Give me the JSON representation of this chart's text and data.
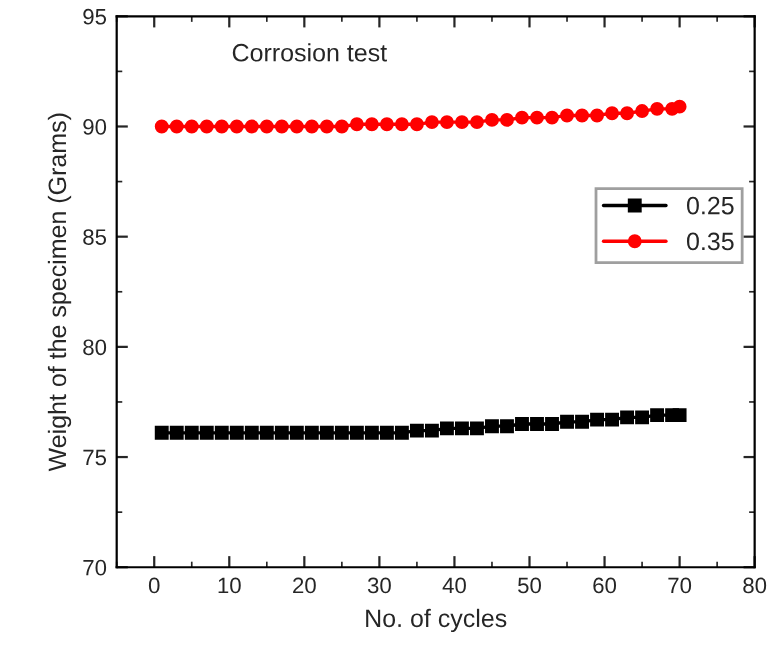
{
  "chart_data": {
    "type": "line",
    "xlabel": "No. of cycles",
    "ylabel": "Weight of the specimen (Grams)",
    "annotations": [
      "Corrosion test"
    ],
    "x": [
      1,
      3,
      5,
      7,
      9,
      11,
      13,
      15,
      17,
      19,
      21,
      23,
      25,
      27,
      29,
      31,
      33,
      35,
      37,
      39,
      41,
      43,
      45,
      47,
      49,
      51,
      53,
      55,
      57,
      59,
      61,
      63,
      65,
      67,
      69,
      70
    ],
    "series": [
      {
        "name": "0.25",
        "color": "#000000",
        "marker": "square",
        "values": [
          76.1,
          76.1,
          76.1,
          76.1,
          76.1,
          76.1,
          76.1,
          76.1,
          76.1,
          76.1,
          76.1,
          76.1,
          76.1,
          76.1,
          76.1,
          76.1,
          76.1,
          76.2,
          76.2,
          76.3,
          76.3,
          76.3,
          76.4,
          76.4,
          76.5,
          76.5,
          76.5,
          76.6,
          76.6,
          76.7,
          76.7,
          76.8,
          76.8,
          76.9,
          76.9,
          76.9
        ]
      },
      {
        "name": "0.35",
        "color": "#ff0000",
        "marker": "circle",
        "values": [
          90.0,
          90.0,
          90.0,
          90.0,
          90.0,
          90.0,
          90.0,
          90.0,
          90.0,
          90.0,
          90.0,
          90.0,
          90.0,
          90.1,
          90.1,
          90.1,
          90.1,
          90.1,
          90.2,
          90.2,
          90.2,
          90.2,
          90.3,
          90.3,
          90.4,
          90.4,
          90.4,
          90.5,
          90.5,
          90.5,
          90.6,
          90.6,
          90.7,
          90.8,
          90.8,
          90.9
        ]
      }
    ],
    "xlim": [
      -5,
      80
    ],
    "xticks": [
      0,
      10,
      20,
      30,
      40,
      50,
      60,
      70,
      80
    ],
    "ylim": [
      70,
      95
    ],
    "yticks": [
      70,
      75,
      80,
      85,
      90,
      95
    ],
    "grid": false,
    "legend": "right",
    "line_style": "solid"
  }
}
